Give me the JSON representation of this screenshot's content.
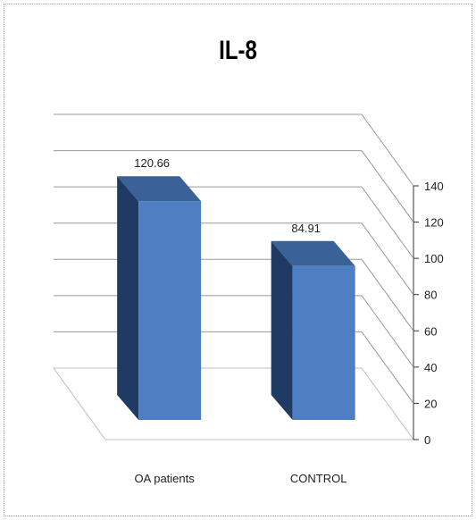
{
  "chart_data": {
    "type": "bar",
    "title": "IL-8",
    "categories": [
      "OA patients",
      "CONTROL"
    ],
    "values": [
      120.66,
      84.91
    ],
    "data_labels": [
      "120.66",
      "84.91"
    ],
    "ylim": [
      0,
      140
    ],
    "yticks": [
      0,
      20,
      40,
      60,
      80,
      100,
      120,
      140
    ],
    "xlabel": "",
    "ylabel": "",
    "grid": true,
    "style": "3d-column",
    "bar_color": "#4F7FC3",
    "bar_top_color": "#3A6299",
    "bar_side_color": "#1F3A63"
  }
}
